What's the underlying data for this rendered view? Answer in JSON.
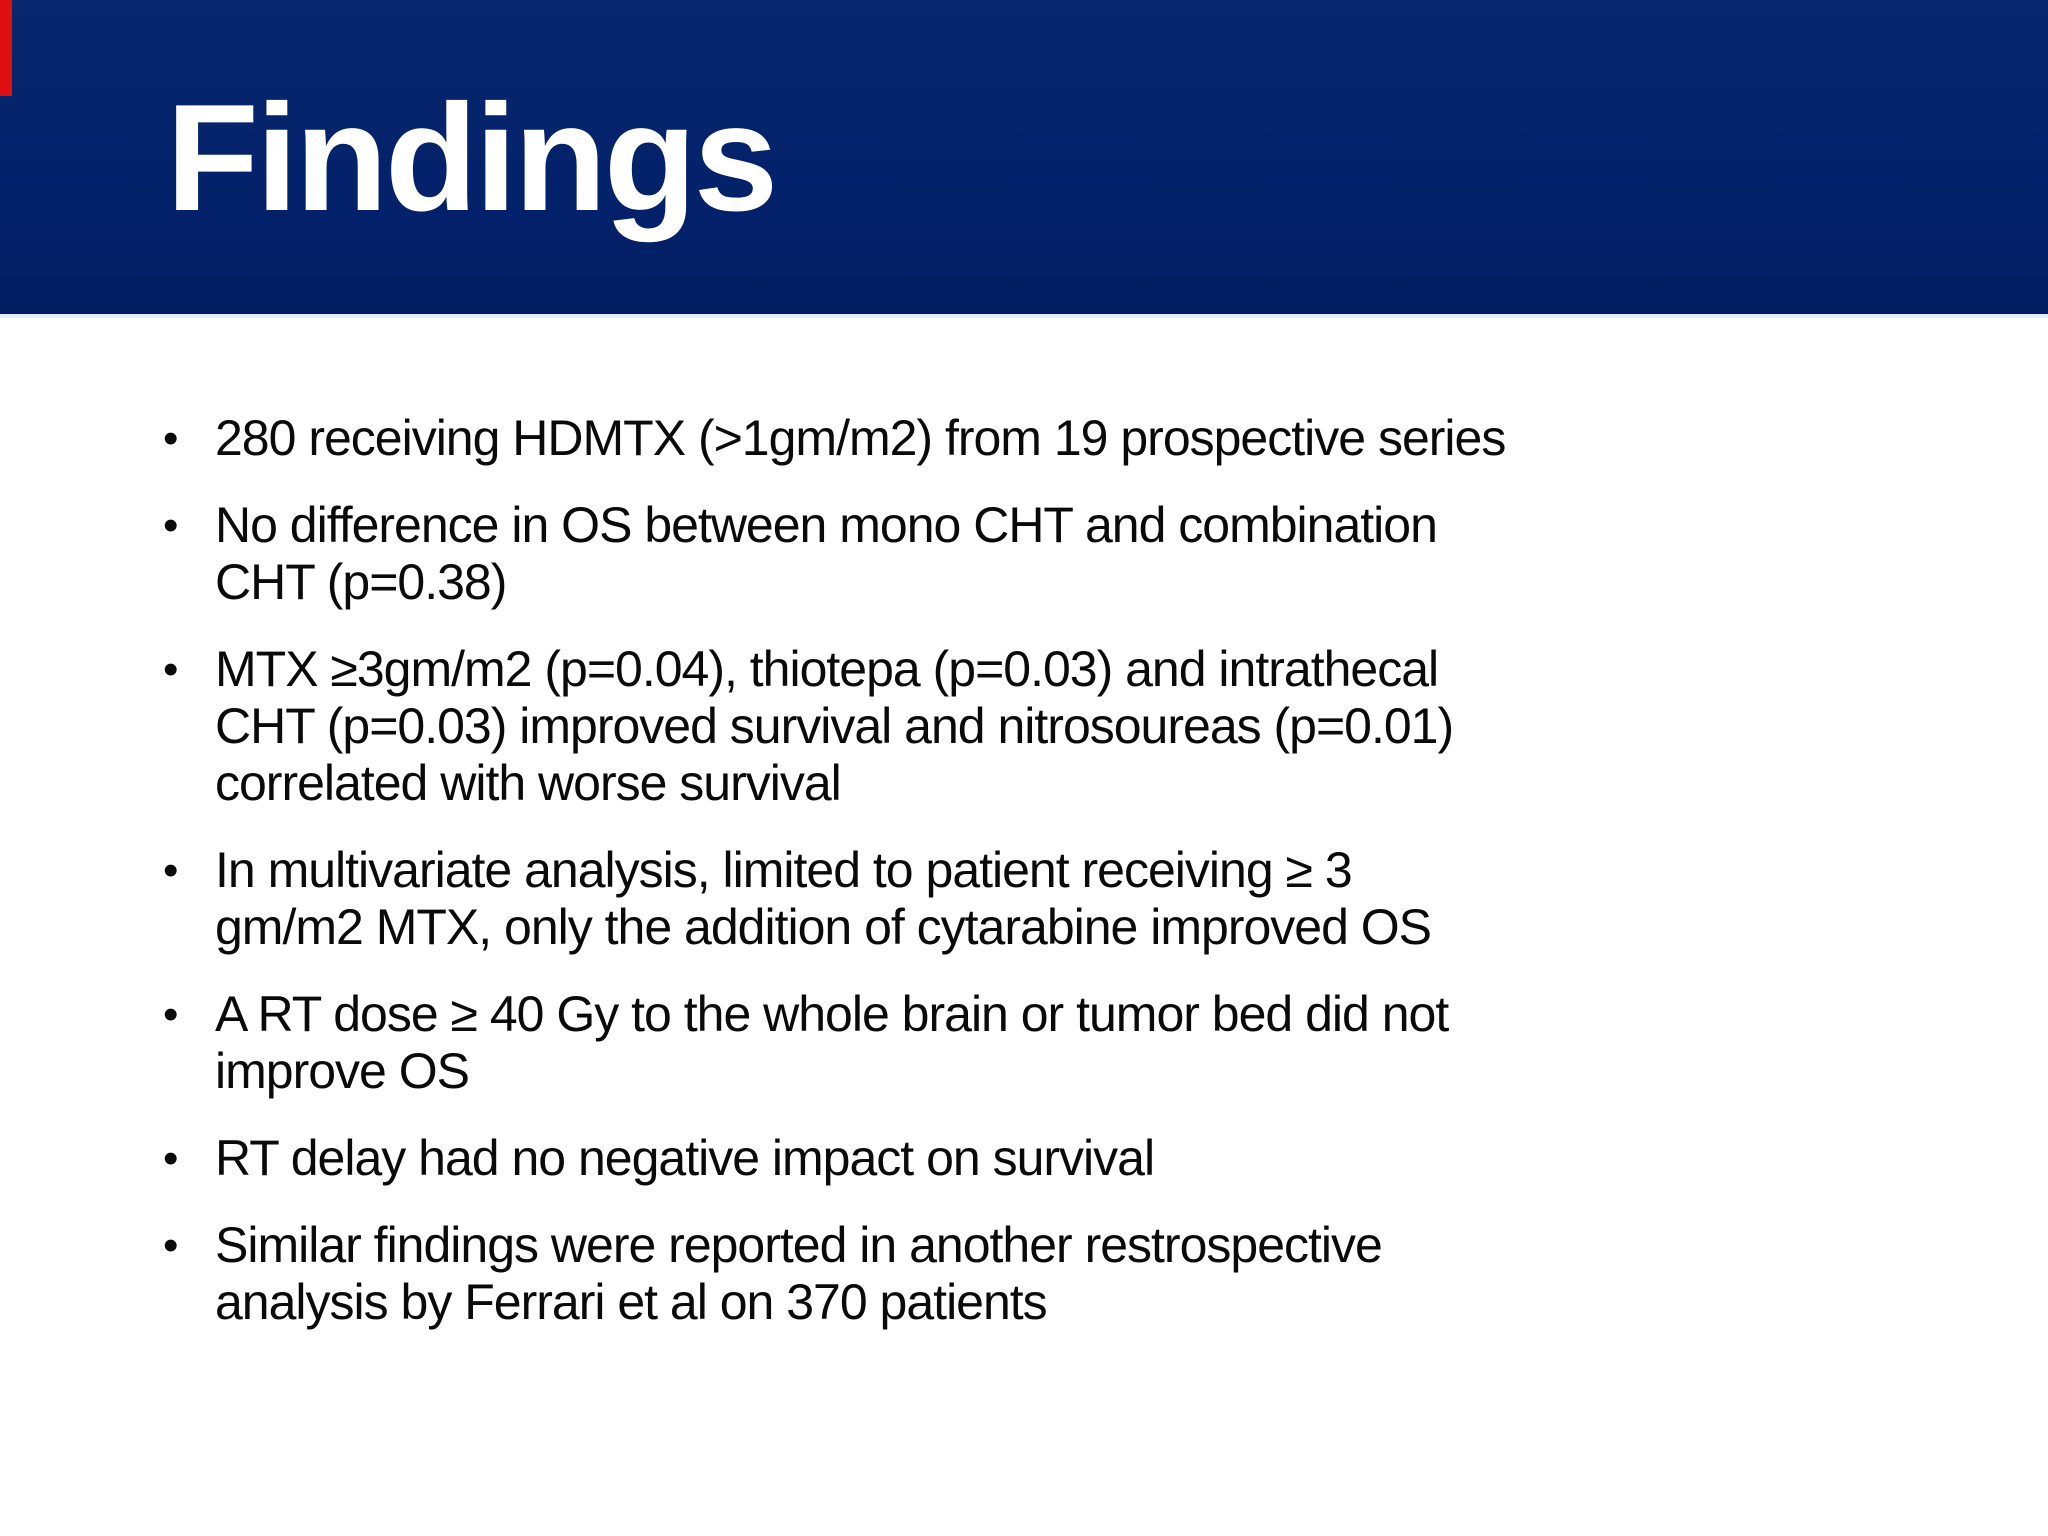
{
  "slide": {
    "title": "Findings",
    "bullet_char": "•",
    "bullets": [
      "280 receiving HDMTX (>1gm/m2) from 19 prospective series",
      "No difference in OS between mono CHT and combination\nCHT (p=0.38)",
      "MTX ≥3gm/m2 (p=0.04), thiotepa (p=0.03) and intrathecal\nCHT (p=0.03) improved survival and nitrosoureas (p=0.01)\ncorrelated with worse survival",
      "In multivariate analysis, limited to patient receiving ≥ 3\ngm/m2 MTX, only the addition of cytarabine improved OS",
      "A RT dose ≥ 40 Gy to the whole brain or tumor bed did not\nimprove OS",
      "RT delay had no negative impact on survival",
      "Similar findings were reported in another restrospective\nanalysis by Ferrari et al on 370 patients"
    ]
  },
  "colors": {
    "header-bg": "#03216a",
    "header-text": "#ffffff",
    "accent-red": "#e01010",
    "body-text": "#0a0a0a",
    "page-bg": "#ffffff"
  }
}
